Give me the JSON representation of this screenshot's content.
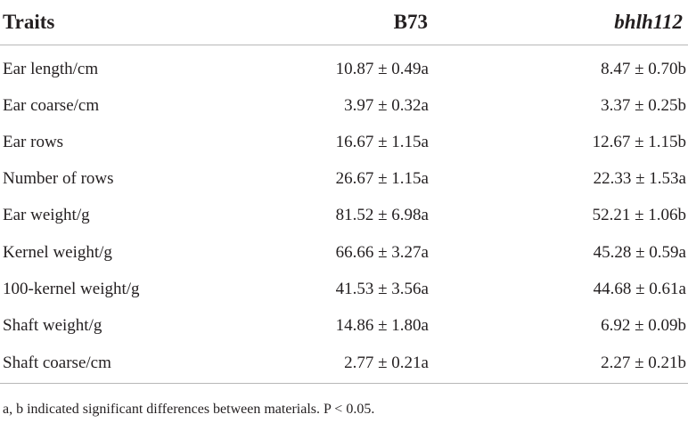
{
  "table": {
    "headers": {
      "traits": "Traits",
      "b73": "B73",
      "mutant": "bhlh112"
    },
    "rows": [
      {
        "trait": "Ear length/cm",
        "b73": "10.87 ± 0.49a",
        "mutant": "8.47 ± 0.70b"
      },
      {
        "trait": "Ear coarse/cm",
        "b73": "3.97 ± 0.32a",
        "mutant": "3.37 ± 0.25b"
      },
      {
        "trait": "Ear rows",
        "b73": "16.67 ± 1.15a",
        "mutant": "12.67 ± 1.15b"
      },
      {
        "trait": "Number of rows",
        "b73": "26.67 ± 1.15a",
        "mutant": "22.33 ± 1.53a"
      },
      {
        "trait": "Ear weight/g",
        "b73": "81.52 ± 6.98a",
        "mutant": "52.21 ± 1.06b"
      },
      {
        "trait": "Kernel weight/g",
        "b73": "66.66 ± 3.27a",
        "mutant": "45.28 ± 0.59a"
      },
      {
        "trait": "100-kernel weight/g",
        "b73": "41.53 ± 3.56a",
        "mutant": "44.68 ± 0.61a"
      },
      {
        "trait": "Shaft weight/g",
        "b73": "14.86 ± 1.80a",
        "mutant": "6.92 ± 0.09b"
      },
      {
        "trait": "Shaft coarse/cm",
        "b73": "2.77 ± 0.21a",
        "mutant": "2.27 ± 0.21b"
      }
    ]
  },
  "footnote": "a, b indicated significant differences between materials. P < 0.05."
}
